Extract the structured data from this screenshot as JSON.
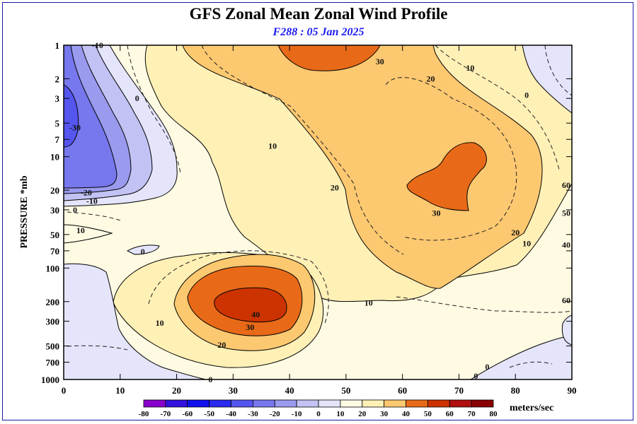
{
  "title": "GFS Zonal Mean Zonal Wind Profile",
  "subtitle": "F288 : 05 Jan 2025",
  "ylabel": "PRESSURE *mb",
  "units_label": "meters/sec",
  "chart_data": {
    "type": "contour",
    "x_ticks": [
      0,
      10,
      20,
      30,
      40,
      50,
      60,
      70,
      80,
      90
    ],
    "xlim": [
      0,
      90
    ],
    "y_ticks": [
      1,
      2,
      3,
      5,
      7,
      10,
      20,
      30,
      50,
      70,
      100,
      200,
      300,
      500,
      700,
      1000
    ],
    "ylim": [
      1,
      1000
    ],
    "y_scale": "log",
    "colorbar": {
      "levels": [
        -80,
        -70,
        -60,
        -50,
        -40,
        -30,
        -20,
        -10,
        0,
        10,
        20,
        30,
        40,
        50,
        60,
        70,
        80
      ],
      "colors": [
        "#8800cc",
        "#3311dd",
        "#1111ee",
        "#2a2af0",
        "#5555f0",
        "#7777ee",
        "#9a9aee",
        "#c2c2f4",
        "#e4e4fb",
        "#fffbe3",
        "#fff0b6",
        "#fcc870",
        "#e86a18",
        "#cc3300",
        "#b00d0d",
        "#8a0000",
        "#6a0000",
        "#9b7a2a"
      ]
    },
    "contour_labels": [
      {
        "text": "-10",
        "lon": 6,
        "p": 1
      },
      {
        "text": "30",
        "lon": 56,
        "p": 1.4
      },
      {
        "text": "20",
        "lon": 65,
        "p": 2
      },
      {
        "text": "10",
        "lon": 72,
        "p": 1.6
      },
      {
        "text": "0",
        "lon": 82,
        "p": 2.8
      },
      {
        "text": "-30",
        "lon": 2,
        "p": 5.5
      },
      {
        "text": "0",
        "lon": 13,
        "p": 3
      },
      {
        "text": "10",
        "lon": 37,
        "p": 8
      },
      {
        "text": "20",
        "lon": 48,
        "p": 19
      },
      {
        "text": "30",
        "lon": 66,
        "p": 32
      },
      {
        "text": "-20",
        "lon": 4,
        "p": 21
      },
      {
        "text": "-10",
        "lon": 5,
        "p": 25
      },
      {
        "text": "0",
        "lon": 2,
        "p": 30
      },
      {
        "text": "10",
        "lon": 3,
        "p": 46
      },
      {
        "text": "0",
        "lon": 14,
        "p": 71
      },
      {
        "text": "20",
        "lon": 80,
        "p": 48
      },
      {
        "text": "10",
        "lon": 82,
        "p": 60
      },
      {
        "text": "60",
        "lon": 89,
        "p": 18
      },
      {
        "text": "50",
        "lon": 89,
        "p": 32
      },
      {
        "text": "40",
        "lon": 89,
        "p": 62
      },
      {
        "text": "60",
        "lon": 89,
        "p": 195
      },
      {
        "text": "10",
        "lon": 54,
        "p": 205
      },
      {
        "text": "40",
        "lon": 34,
        "p": 260
      },
      {
        "text": "30",
        "lon": 33,
        "p": 340
      },
      {
        "text": "20",
        "lon": 28,
        "p": 490
      },
      {
        "text": "10",
        "lon": 17,
        "p": 310
      },
      {
        "text": "0",
        "lon": 26,
        "p": 1000
      },
      {
        "text": "0",
        "lon": 73,
        "p": 930
      },
      {
        "text": "0",
        "lon": 75,
        "p": 770
      }
    ]
  }
}
